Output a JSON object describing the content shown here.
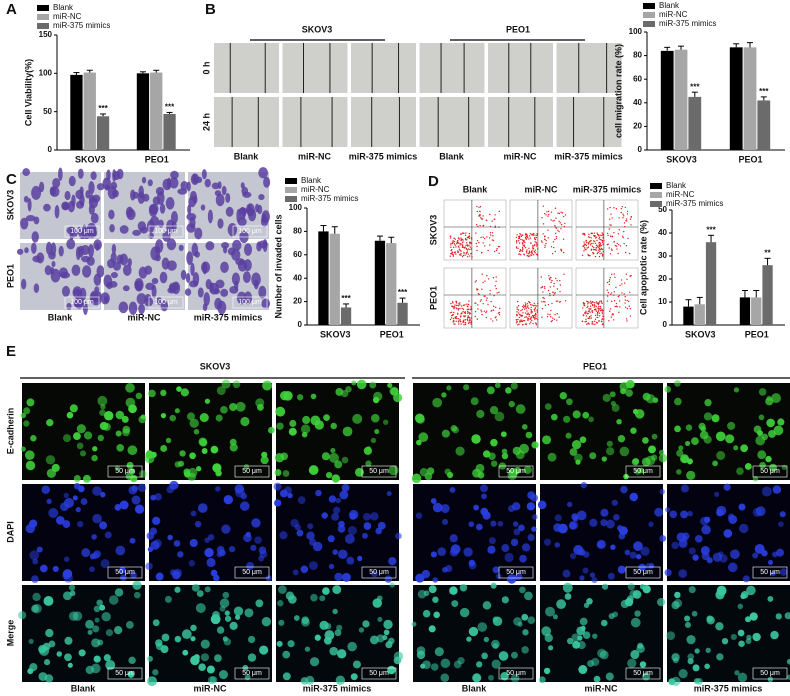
{
  "figure": {
    "panel_letters": [
      "A",
      "B",
      "C",
      "D",
      "E"
    ],
    "migration": {
      "groups": [
        "SKOV3",
        "PEO1"
      ],
      "rows": [
        "0 h",
        "24 h"
      ],
      "columns": [
        "Blank",
        "miR-NC",
        "miR-375 mimics",
        "Blank",
        "miR-NC",
        "miR-375 mimics"
      ]
    },
    "invasion": {
      "rows": [
        "SKOV3",
        "PEO1"
      ],
      "columns": [
        "Blank",
        "miR-NC",
        "miR-375 mimics"
      ],
      "scale_bar": "100 μm"
    },
    "flow": {
      "rows": [
        "SKOV3",
        "PEO1"
      ],
      "columns": [
        "Blank",
        "miR-NC",
        "miR-375 mimics"
      ]
    },
    "fluorescence": {
      "groups": [
        "SKOV3",
        "PEO1"
      ],
      "rows": [
        "E-cadherin",
        "DAPI",
        "Merge"
      ],
      "columns": [
        "Blank",
        "miR-NC",
        "miR-375 mimics",
        "Blank",
        "miR-NC",
        "miR-375 mimics"
      ],
      "scale_bar": "50 μm"
    }
  },
  "chart_data": [
    {
      "type": "bar",
      "ylabel": "Cell Viability(%)",
      "categories": [
        "SKOV3",
        "PEO1"
      ],
      "ylim": [
        0,
        150
      ],
      "yticks": [
        0,
        50,
        100,
        150
      ],
      "series": [
        {
          "name": "Blank",
          "color": "#000000",
          "values": [
            98,
            100
          ],
          "errors": [
            3,
            2
          ]
        },
        {
          "name": "miR-NC",
          "color": "#a6a6a6",
          "values": [
            101,
            101
          ],
          "errors": [
            3,
            3
          ]
        },
        {
          "name": "miR-375 mimics",
          "color": "#6b6b6b",
          "values": [
            44,
            47
          ],
          "errors": [
            3,
            2
          ],
          "significance": [
            "***",
            "***"
          ]
        }
      ]
    },
    {
      "type": "bar",
      "ylabel": "cell migration rate (%)",
      "categories": [
        "SKOV3",
        "PEO1"
      ],
      "ylim": [
        0,
        100
      ],
      "yticks": [
        0,
        20,
        40,
        60,
        80,
        100
      ],
      "series": [
        {
          "name": "Blank",
          "color": "#000000",
          "values": [
            84,
            87
          ],
          "errors": [
            3,
            3
          ]
        },
        {
          "name": "miR-NC",
          "color": "#a6a6a6",
          "values": [
            85,
            87
          ],
          "errors": [
            3,
            4
          ]
        },
        {
          "name": "miR-375 mimics",
          "color": "#6b6b6b",
          "values": [
            45,
            42
          ],
          "errors": [
            4,
            3
          ],
          "significance": [
            "***",
            "***"
          ]
        }
      ]
    },
    {
      "type": "bar",
      "ylabel": "Number of invaded cells",
      "categories": [
        "SKOV3",
        "PEO1"
      ],
      "ylim": [
        0,
        100
      ],
      "yticks": [
        0,
        20,
        40,
        60,
        80,
        100
      ],
      "series": [
        {
          "name": "Blank",
          "color": "#000000",
          "values": [
            80,
            72
          ],
          "errors": [
            5,
            4
          ]
        },
        {
          "name": "miR-NC",
          "color": "#a6a6a6",
          "values": [
            78,
            70
          ],
          "errors": [
            6,
            5
          ]
        },
        {
          "name": "miR-375 mimics",
          "color": "#6b6b6b",
          "values": [
            15,
            19
          ],
          "errors": [
            3,
            4
          ],
          "significance": [
            "***",
            "***"
          ]
        }
      ]
    },
    {
      "type": "bar",
      "ylabel": "Cell apoptotic rate (%)",
      "categories": [
        "SKOV3",
        "PEO1"
      ],
      "ylim": [
        0,
        50
      ],
      "yticks": [
        0,
        10,
        20,
        30,
        40,
        50
      ],
      "series": [
        {
          "name": "Blank",
          "color": "#000000",
          "values": [
            8,
            12
          ],
          "errors": [
            3,
            3
          ]
        },
        {
          "name": "miR-NC",
          "color": "#a6a6a6",
          "values": [
            9,
            12
          ],
          "errors": [
            3,
            3
          ]
        },
        {
          "name": "miR-375 mimics",
          "color": "#6b6b6b",
          "values": [
            36,
            26
          ],
          "errors": [
            3,
            3
          ],
          "significance": [
            "***",
            "**"
          ]
        }
      ]
    }
  ]
}
